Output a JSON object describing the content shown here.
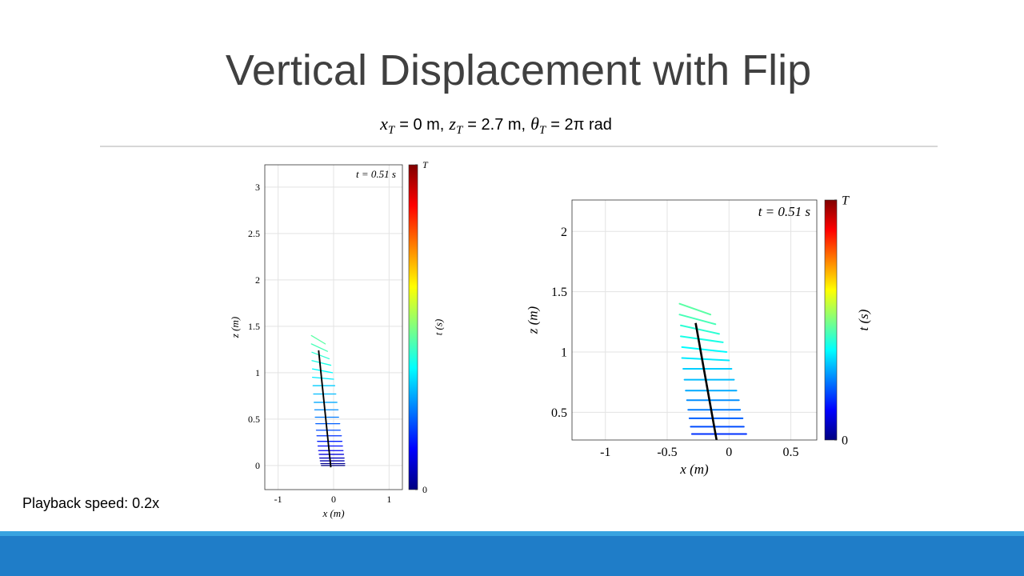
{
  "slide": {
    "title": "Vertical Displacement with Flip",
    "subtitle_terms": [
      {
        "symbol": "x",
        "subscript": "T",
        "text": "= 0 m,"
      },
      {
        "symbol": "z",
        "subscript": "T",
        "text": "= 2.7 m,"
      },
      {
        "symbol": "θ",
        "subscript": "T",
        "text": "= 2π rad"
      }
    ],
    "footnote": "Playback speed: 0.2x"
  },
  "chart_data": [
    {
      "type": "line",
      "annotation": "t = 0.51 s",
      "xlabel": "x (m)",
      "ylabel": "z (m)",
      "colorbar_label": "t (s)",
      "colormap": "jet",
      "clim": [
        0,
        1.1
      ],
      "cticks": [
        0,
        {
          "value": 1.1,
          "label": "T"
        }
      ],
      "xlim": [
        -1.24,
        1.24
      ],
      "ylim": [
        -0.26,
        3.24
      ],
      "xticks": [
        -1,
        0,
        1
      ],
      "yticks": [
        0,
        0.5,
        1,
        1.5,
        2,
        2.5,
        3
      ],
      "grid": true,
      "frames": {
        "x_left": [
          -0.22,
          -0.23,
          -0.24,
          -0.25,
          -0.26,
          -0.27,
          -0.28,
          -0.29,
          -0.3,
          -0.31,
          -0.32,
          -0.33,
          -0.34,
          -0.35,
          -0.36,
          -0.37,
          -0.38,
          -0.38,
          -0.39,
          -0.39,
          -0.4,
          -0.4
        ],
        "z_left": [
          0,
          0.02,
          0.05,
          0.08,
          0.12,
          0.16,
          0.21,
          0.26,
          0.32,
          0.38,
          0.45,
          0.52,
          0.6,
          0.68,
          0.77,
          0.86,
          0.95,
          1.04,
          1.13,
          1.22,
          1.31,
          1.4
        ],
        "x_right": [
          0.2,
          0.2,
          0.19,
          0.19,
          0.18,
          0.17,
          0.16,
          0.15,
          0.14,
          0.12,
          0.11,
          0.09,
          0.08,
          0.06,
          0.04,
          0.02,
          0,
          -0.02,
          -0.05,
          -0.08,
          -0.11,
          -0.15
        ],
        "z_right": [
          0,
          0.02,
          0.05,
          0.08,
          0.12,
          0.16,
          0.21,
          0.26,
          0.32,
          0.38,
          0.45,
          0.52,
          0.6,
          0.68,
          0.77,
          0.86,
          0.93,
          1,
          1.08,
          1.15,
          1.23,
          1.31
        ],
        "t": [
          0,
          0.02,
          0.05,
          0.07,
          0.1,
          0.12,
          0.15,
          0.17,
          0.19,
          0.22,
          0.24,
          0.27,
          0.29,
          0.32,
          0.34,
          0.36,
          0.39,
          0.41,
          0.44,
          0.46,
          0.49,
          0.51
        ]
      },
      "body": {
        "x": [
          -0.27,
          -0.05
        ],
        "z": [
          1.24,
          -0.02
        ],
        "color": "#000000"
      }
    },
    {
      "type": "line",
      "annotation": "t = 0.51 s",
      "xlabel": "x (m)",
      "ylabel": "z (m)",
      "colorbar_label": "t (s)",
      "colormap": "jet",
      "clim": [
        0,
        1.1
      ],
      "cticks": [
        0,
        {
          "value": 1.1,
          "label": "T"
        }
      ],
      "xlim": [
        -1.27,
        0.71
      ],
      "ylim": [
        0.27,
        2.26
      ],
      "xticks": [
        -1,
        -0.5,
        0,
        0.5
      ],
      "yticks": [
        0.5,
        1,
        1.5,
        2
      ],
      "grid": true,
      "frames": {
        "x_left": [
          -0.22,
          -0.23,
          -0.24,
          -0.25,
          -0.26,
          -0.27,
          -0.28,
          -0.29,
          -0.3,
          -0.31,
          -0.32,
          -0.33,
          -0.34,
          -0.35,
          -0.36,
          -0.37,
          -0.38,
          -0.38,
          -0.39,
          -0.39,
          -0.4,
          -0.4
        ],
        "z_left": [
          0,
          0.02,
          0.05,
          0.08,
          0.12,
          0.16,
          0.21,
          0.26,
          0.32,
          0.38,
          0.45,
          0.52,
          0.6,
          0.68,
          0.77,
          0.86,
          0.95,
          1.04,
          1.13,
          1.22,
          1.31,
          1.4
        ],
        "x_right": [
          0.2,
          0.2,
          0.19,
          0.19,
          0.18,
          0.17,
          0.16,
          0.15,
          0.14,
          0.12,
          0.11,
          0.09,
          0.08,
          0.06,
          0.04,
          0.02,
          0,
          -0.02,
          -0.05,
          -0.08,
          -0.11,
          -0.15
        ],
        "z_right": [
          0,
          0.02,
          0.05,
          0.08,
          0.12,
          0.16,
          0.21,
          0.26,
          0.32,
          0.38,
          0.45,
          0.52,
          0.6,
          0.68,
          0.77,
          0.86,
          0.93,
          1,
          1.08,
          1.15,
          1.23,
          1.31
        ],
        "t": [
          0,
          0.02,
          0.05,
          0.07,
          0.1,
          0.12,
          0.15,
          0.17,
          0.19,
          0.22,
          0.24,
          0.27,
          0.29,
          0.32,
          0.34,
          0.36,
          0.39,
          0.41,
          0.44,
          0.46,
          0.49,
          0.51
        ]
      },
      "body": {
        "x": [
          -0.27,
          -0.05
        ],
        "z": [
          1.24,
          -0.02
        ],
        "color": "#000000"
      }
    }
  ]
}
